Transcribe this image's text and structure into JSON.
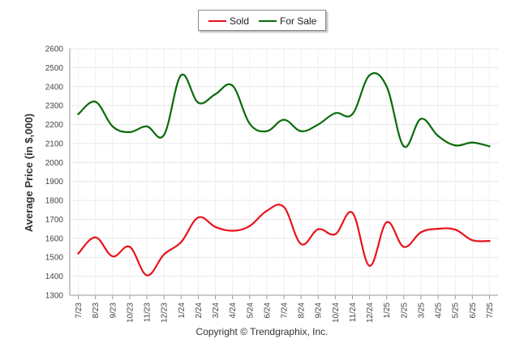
{
  "chart_data": {
    "type": "line",
    "ylabel": "Average Price (in $,000)",
    "xlabel": "",
    "ylim": [
      1300,
      2600
    ],
    "yticks": [
      1300,
      1400,
      1500,
      1600,
      1700,
      1800,
      1900,
      2000,
      2100,
      2200,
      2300,
      2400,
      2500,
      2600
    ],
    "grid": true,
    "legend_position": "top-center",
    "categories": [
      "7/23",
      "8/23",
      "9/23",
      "10/23",
      "11/23",
      "12/23",
      "1/24",
      "2/24",
      "3/24",
      "4/24",
      "5/24",
      "6/24",
      "7/24",
      "8/24",
      "9/24",
      "10/24",
      "11/24",
      "12/24",
      "1/25",
      "2/25",
      "3/25",
      "4/25",
      "5/25",
      "6/25",
      "7/25"
    ],
    "series": [
      {
        "name": "Sold",
        "color": "#e8141c",
        "values": [
          1520,
          1605,
          1505,
          1555,
          1405,
          1515,
          1580,
          1710,
          1660,
          1640,
          1665,
          1745,
          1765,
          1570,
          1648,
          1622,
          1735,
          1455,
          1685,
          1555,
          1632,
          1650,
          1646,
          1590,
          1586
        ]
      },
      {
        "name": "For Sale",
        "color": "#0a6b0a",
        "values": [
          2255,
          2320,
          2190,
          2160,
          2190,
          2145,
          2460,
          2315,
          2360,
          2405,
          2205,
          2165,
          2225,
          2165,
          2200,
          2260,
          2255,
          2460,
          2400,
          2085,
          2230,
          2140,
          2090,
          2105,
          2085
        ]
      }
    ]
  },
  "legend": {
    "sold_label": "Sold",
    "forsale_label": "For Sale"
  },
  "copyright": "Copyright © Trendgraphix, Inc."
}
